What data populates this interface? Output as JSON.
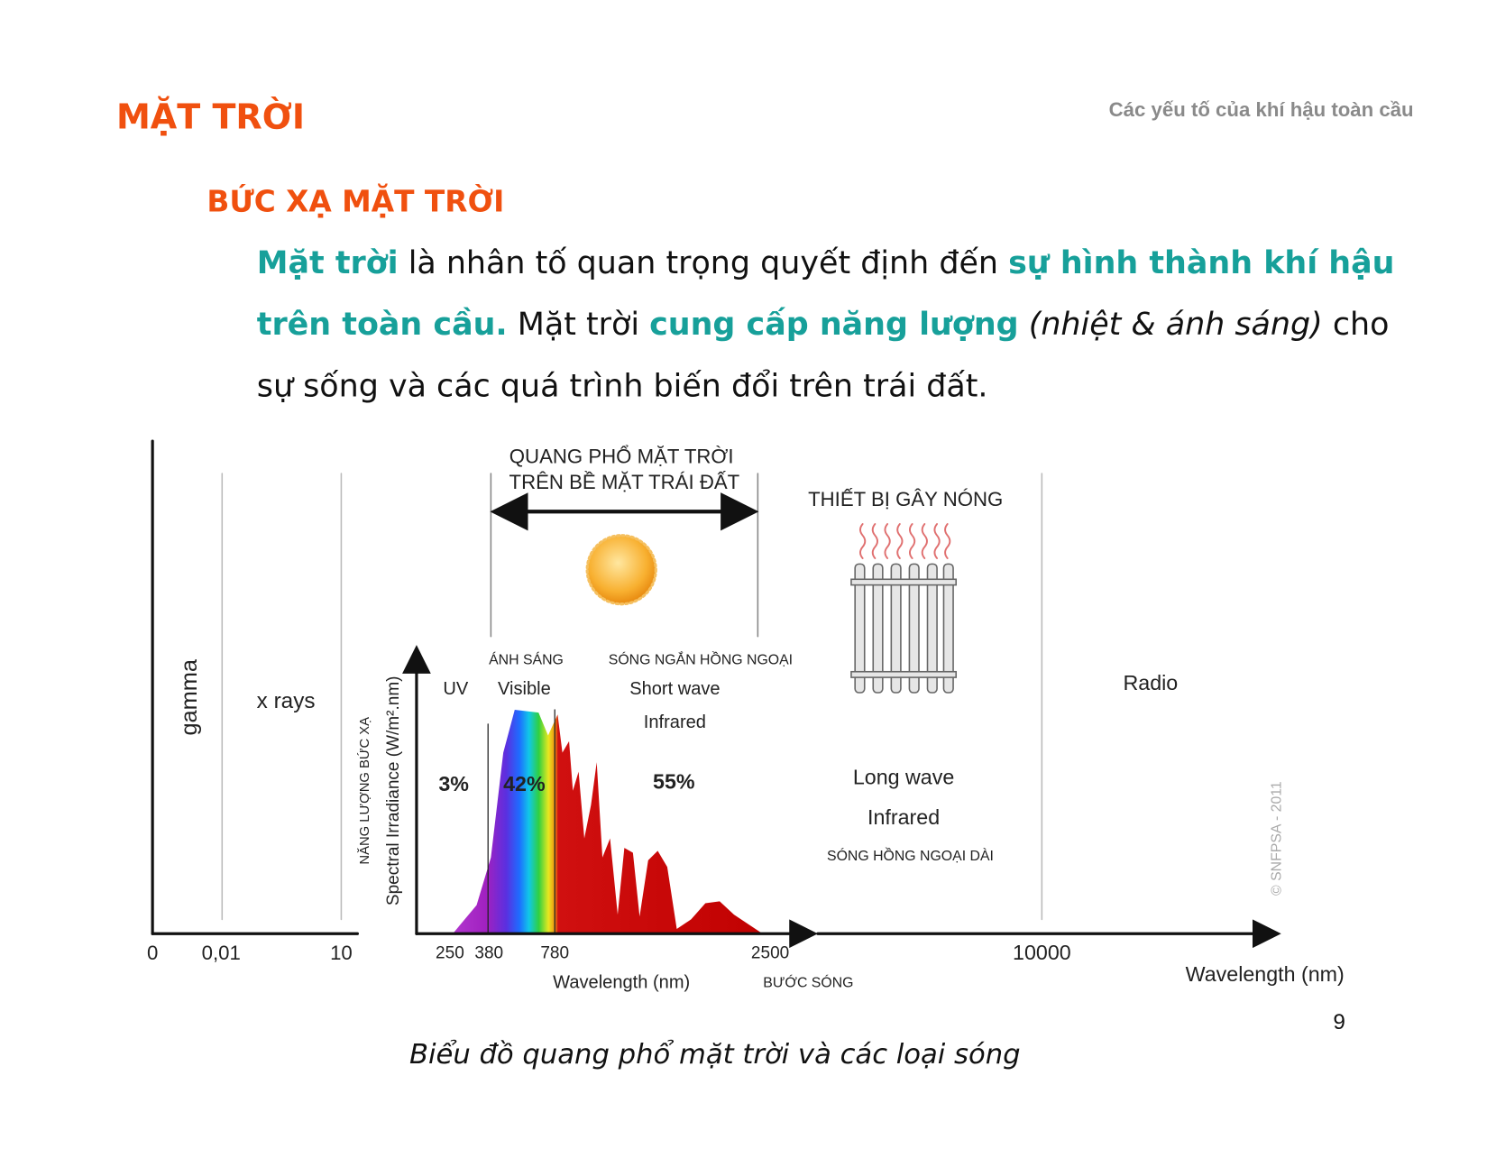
{
  "header": {
    "title": "MẶT TRỜI",
    "subtitle": "Các yếu tố của khí hậu toàn cầu"
  },
  "section": {
    "heading": "BỨC XẠ MẶT TRỜI",
    "paragraph": [
      [
        "Mặt trời",
        " là nhân tố quan trọng quyết định đến ",
        "sự hình thành khí hậu"
      ],
      [
        "trên toàn cầu.",
        " Mặt trời ",
        "cung cấp năng lượng",
        " (nhiệt & ánh sáng)",
        " cho"
      ],
      [
        "sự sống và các quá trình biến đổi trên trái đất."
      ]
    ]
  },
  "figure": {
    "labels": {
      "gamma": "gamma",
      "xrays": "x rays",
      "spectrum_top_1": "QUANG PHỔ MẶT TRỜI",
      "spectrum_top_2": "TRÊN BỀ MẶT TRÁI ĐẤT",
      "heater": "THIẾT BỊ GÂY NÓNG",
      "light_vi": "ÁNH SÁNG",
      "visible": "Visible",
      "short_ir_vi": "SÓNG NGẮN HỒNG NGOẠI",
      "short_wave": "Short wave",
      "infrared_short": "Infrared",
      "uv": "UV",
      "uv_share": "3%",
      "visible_share": "42%",
      "ir_share": "55%",
      "long_wave": "Long wave",
      "infrared_long": "Infrared",
      "long_ir_vi": "SÓNG HỒNG NGOẠI DÀI",
      "radio": "Radio",
      "copyright": "© SNFPSA - 2011",
      "y_label_vi": "NĂNG LƯỢNG BỨC XẠ",
      "y_label": "Spectral Irradiance (W/m².nm)",
      "tick_0": "0",
      "tick_001": "0,01",
      "tick_10": "10",
      "tick_250": "250",
      "tick_380": "380",
      "tick_780": "780",
      "tick_2500": "2500",
      "tick_10000": "10000",
      "x_label_inner": "Wavelength (nm)",
      "x_label_vi": "BƯỚC SÓNG",
      "x_label_outer": "Wavelength (nm)"
    },
    "caption": "Biểu đồ quang phổ mặt trời và các loại sóng"
  },
  "page_number": "9"
}
